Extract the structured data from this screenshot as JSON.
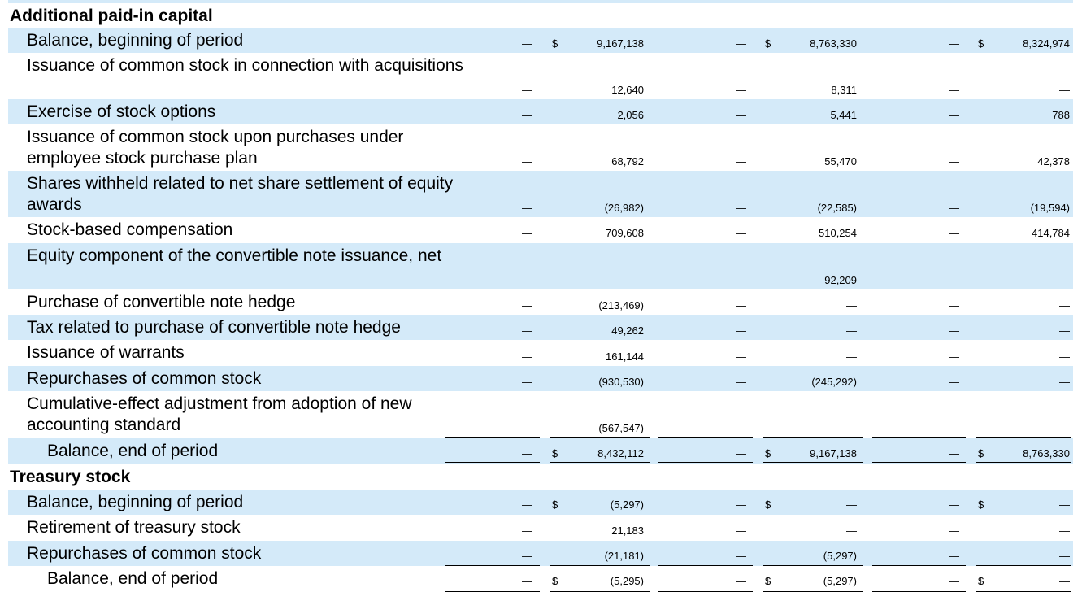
{
  "table": {
    "columns": [
      {
        "key": "shares_1",
        "type": "shares"
      },
      {
        "key": "amount_1",
        "type": "amount"
      },
      {
        "key": "shares_2",
        "type": "shares"
      },
      {
        "key": "amount_2",
        "type": "amount"
      },
      {
        "key": "shares_3",
        "type": "shares"
      },
      {
        "key": "amount_3",
        "type": "amount"
      }
    ],
    "currency_symbol": "$",
    "sections": [
      {
        "title": "Additional paid-in capital",
        "rows": [
          {
            "label": "Balance, beginning of period",
            "indent": 1,
            "dollar": true,
            "values": [
              "—",
              "9,167,138",
              "—",
              "8,763,330",
              "—",
              "8,324,974"
            ]
          },
          {
            "label": "Issuance of common stock in connection with acquisitions",
            "indent": 1,
            "dollar": false,
            "values": [
              "—",
              "12,640",
              "—",
              "8,311",
              "—",
              "—"
            ]
          },
          {
            "label": "Exercise of stock options",
            "indent": 1,
            "dollar": false,
            "values": [
              "—",
              "2,056",
              "—",
              "5,441",
              "—",
              "788"
            ]
          },
          {
            "label": "Issuance of common stock upon purchases under employee stock purchase plan",
            "indent": 1,
            "dollar": false,
            "values": [
              "—",
              "68,792",
              "—",
              "55,470",
              "—",
              "42,378"
            ]
          },
          {
            "label": "Shares withheld related to net share settlement of equity awards",
            "indent": 1,
            "dollar": false,
            "values": [
              "—",
              "(26,982)",
              "—",
              "(22,585)",
              "—",
              "(19,594)"
            ]
          },
          {
            "label": "Stock-based compensation",
            "indent": 1,
            "dollar": false,
            "values": [
              "—",
              "709,608",
              "—",
              "510,254",
              "—",
              "414,784"
            ]
          },
          {
            "label": "Equity component of the convertible note issuance, net",
            "indent": 1,
            "dollar": false,
            "values": [
              "—",
              "—",
              "—",
              "92,209",
              "—",
              "—"
            ]
          },
          {
            "label": "Purchase of convertible note hedge",
            "indent": 1,
            "dollar": false,
            "values": [
              "—",
              "(213,469)",
              "—",
              "—",
              "—",
              "—"
            ]
          },
          {
            "label": "Tax related to purchase of convertible note hedge",
            "indent": 1,
            "dollar": false,
            "values": [
              "—",
              "49,262",
              "—",
              "—",
              "—",
              "—"
            ]
          },
          {
            "label": "Issuance of warrants",
            "indent": 1,
            "dollar": false,
            "values": [
              "—",
              "161,144",
              "—",
              "—",
              "—",
              "—"
            ]
          },
          {
            "label": "Repurchases of common stock",
            "indent": 1,
            "dollar": false,
            "values": [
              "—",
              "(930,530)",
              "—",
              "(245,292)",
              "—",
              "—"
            ]
          },
          {
            "label": "Cumulative-effect adjustment from adoption of new accounting standard",
            "indent": 1,
            "dollar": false,
            "values": [
              "—",
              "(567,547)",
              "—",
              "—",
              "—",
              "—"
            ]
          },
          {
            "label": "Balance, end of period",
            "indent": 2,
            "dollar": true,
            "values": [
              "—",
              "8,432,112",
              "—",
              "9,167,138",
              "—",
              "8,763,330"
            ]
          }
        ]
      },
      {
        "title": "Treasury stock",
        "rows": [
          {
            "label": "Balance, beginning of period",
            "indent": 1,
            "dollar": true,
            "values": [
              "—",
              "(5,297)",
              "—",
              "—",
              "—",
              "—"
            ]
          },
          {
            "label": "Retirement of treasury stock",
            "indent": 1,
            "dollar": false,
            "values": [
              "—",
              "21,183",
              "—",
              "—",
              "—",
              "—"
            ]
          },
          {
            "label": "Repurchases of common stock",
            "indent": 1,
            "dollar": false,
            "values": [
              "—",
              "(21,181)",
              "—",
              "(5,297)",
              "—",
              "—"
            ]
          },
          {
            "label": "Balance, end of period",
            "indent": 2,
            "dollar": true,
            "values": [
              "—",
              "(5,295)",
              "—",
              "(5,297)",
              "—",
              "—"
            ]
          }
        ]
      }
    ]
  },
  "colors": {
    "row_shade": "#d4eaf9",
    "text": "#000000",
    "rule": "#000000"
  }
}
